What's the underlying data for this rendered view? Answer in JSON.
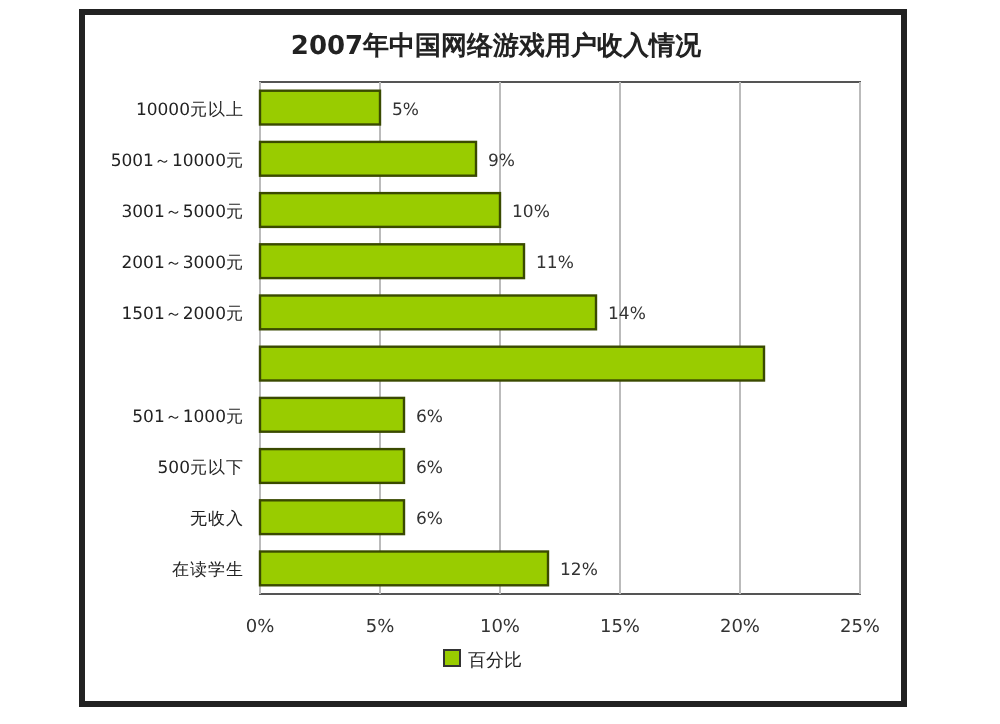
{
  "chart_data": {
    "type": "bar",
    "orientation": "horizontal",
    "title": "2007年中国网络游戏用户收入情况",
    "categories": [
      "10000元以上",
      "5001～10000元",
      "3001～5000元",
      "2001～3000元",
      "1501～2000元",
      null,
      "501～1000元",
      "500元以下",
      "无收入",
      "在读学生"
    ],
    "series": [
      {
        "name": "百分比",
        "color": "#99cc00",
        "values": [
          5,
          9,
          10,
          11,
          14,
          21,
          6,
          6,
          6,
          12
        ],
        "value_labels": [
          "5%",
          "9%",
          "10%",
          "11%",
          "14%",
          null,
          "6%",
          "6%",
          "6%",
          "12%"
        ]
      }
    ],
    "xlim": [
      0,
      25
    ],
    "xticks": [
      {
        "value": 0,
        "label": "0%"
      },
      {
        "value": 5,
        "label": "5%"
      },
      {
        "value": 10,
        "label": "10%"
      },
      {
        "value": 15,
        "label": "15%"
      },
      {
        "value": 20,
        "label": "20%"
      },
      {
        "value": 25,
        "label": "25%"
      }
    ],
    "grid": "x",
    "legend": "bottom"
  }
}
